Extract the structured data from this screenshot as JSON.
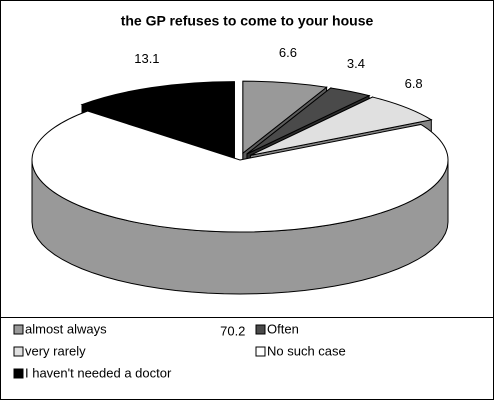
{
  "chart_data": {
    "type": "pie",
    "title": "the GP refuses to come to your house",
    "categories": [
      "almost always",
      "Often",
      "very rarely",
      "No such case",
      "I haven't needed a doctor"
    ],
    "values": [
      6.6,
      3.4,
      6.8,
      70.2,
      13.1
    ],
    "colors": [
      "#999999",
      "#4a4a4a",
      "#e0e0e0",
      "#ffffff",
      "#000000"
    ],
    "legend": "bottom"
  }
}
